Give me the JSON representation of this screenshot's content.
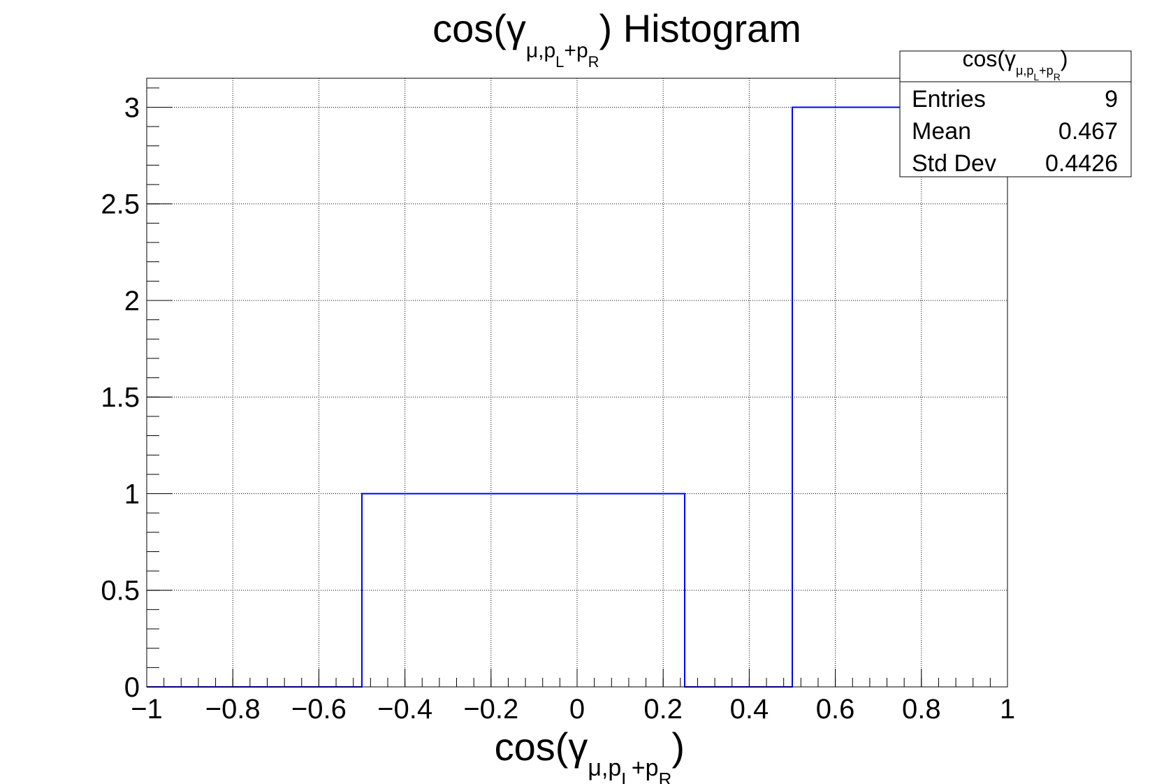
{
  "chart_data": {
    "type": "bar",
    "style": "step-histogram",
    "title": {
      "prefix": "cos(γ",
      "sub_a": "μ,p",
      "sub_b": "L",
      "sub_c": "+p",
      "sub_d": "R",
      "suffix": ") Histogram"
    },
    "xlabel": {
      "prefix": "cos(γ",
      "sub_a": "μ,p",
      "sub_b": "L",
      "sub_c": "+p",
      "sub_d": "R",
      "suffix": ")"
    },
    "ylabel": "",
    "xlim": [
      -1,
      1
    ],
    "ylim": [
      0,
      3.15
    ],
    "bin_edges": [
      -1,
      -0.75,
      -0.5,
      -0.25,
      0,
      0.25,
      0.5,
      0.75,
      1
    ],
    "values": [
      0,
      0,
      1,
      1,
      1,
      0,
      3,
      3
    ],
    "x_ticks": [
      "−1",
      "−0.8",
      "−0.6",
      "−0.4",
      "−0.2",
      "0",
      "0.2",
      "0.4",
      "0.6",
      "0.8",
      "1"
    ],
    "x_tick_values": [
      -1,
      -0.8,
      -0.6,
      -0.4,
      -0.2,
      0,
      0.2,
      0.4,
      0.6,
      0.8,
      1
    ],
    "y_ticks": [
      "0",
      "0.5",
      "1",
      "1.5",
      "2",
      "2.5",
      "3"
    ],
    "y_tick_values": [
      0,
      0.5,
      1,
      1.5,
      2,
      2.5,
      3
    ],
    "grid": true,
    "line_color": "#0000ff",
    "legend_placement": "top-right",
    "stats": {
      "title": {
        "prefix": "cos(γ",
        "sub_a": "μ,p",
        "sub_b": "L",
        "sub_c": "+p",
        "sub_d": "R",
        "suffix": ")"
      },
      "rows": [
        {
          "label": "Entries",
          "value": "9"
        },
        {
          "label": "Mean",
          "value": "0.467"
        },
        {
          "label": "Std Dev",
          "value": "0.4426"
        }
      ]
    }
  }
}
